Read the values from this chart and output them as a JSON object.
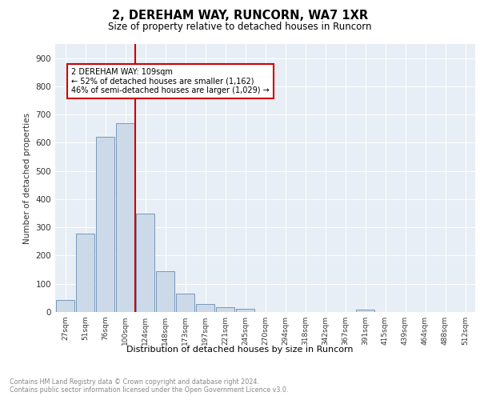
{
  "title_line1": "2, DEREHAM WAY, RUNCORN, WA7 1XR",
  "title_line2": "Size of property relative to detached houses in Runcorn",
  "xlabel": "Distribution of detached houses by size in Runcorn",
  "ylabel": "Number of detached properties",
  "bin_labels": [
    "27sqm",
    "51sqm",
    "76sqm",
    "100sqm",
    "124sqm",
    "148sqm",
    "173sqm",
    "197sqm",
    "221sqm",
    "245sqm",
    "270sqm",
    "294sqm",
    "318sqm",
    "342sqm",
    "367sqm",
    "391sqm",
    "415sqm",
    "439sqm",
    "464sqm",
    "488sqm",
    "512sqm"
  ],
  "bar_heights": [
    42,
    278,
    622,
    670,
    348,
    145,
    65,
    28,
    18,
    12,
    0,
    0,
    0,
    0,
    0,
    8,
    0,
    0,
    0,
    0,
    0
  ],
  "bar_color": "#ccd9e8",
  "bar_edge_color": "#7799bb",
  "vline_x_bin": 3.5,
  "vline_color": "#cc0000",
  "annotation_text": "2 DEREHAM WAY: 109sqm\n← 52% of detached houses are smaller (1,162)\n46% of semi-detached houses are larger (1,029) →",
  "annotation_box_facecolor": "#ffffff",
  "annotation_box_edgecolor": "#cc0000",
  "ylim": [
    0,
    950
  ],
  "yticks": [
    0,
    100,
    200,
    300,
    400,
    500,
    600,
    700,
    800,
    900
  ],
  "plot_bg_color": "#e8eef5",
  "grid_color": "#ffffff",
  "footnote": "Contains HM Land Registry data © Crown copyright and database right 2024.\nContains public sector information licensed under the Open Government Licence v3.0."
}
